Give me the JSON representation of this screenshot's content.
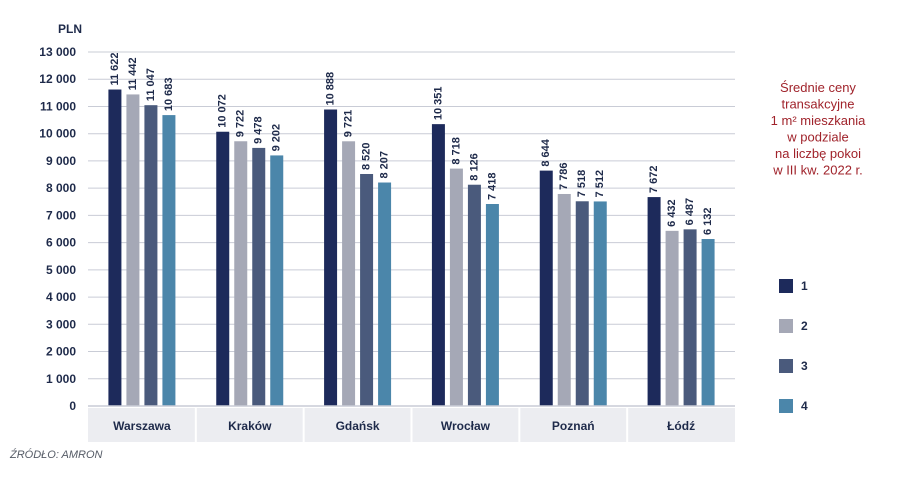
{
  "chart_data": {
    "type": "bar",
    "unit_label": "PLN",
    "title_lines": [
      "Średnie ceny",
      "transakcyjne",
      "1 m² mieszkania",
      "w podziale",
      "na liczbę pokoi",
      "w III kw. 2022 r."
    ],
    "categories": [
      "Warszawa",
      "Kraków",
      "Gdańsk",
      "Wrocław",
      "Poznań",
      "Łódź"
    ],
    "series": [
      {
        "name": "1",
        "color": "#1d2a5b",
        "values": [
          11622,
          10072,
          10888,
          10351,
          8644,
          7672
        ],
        "labels": [
          "11 622",
          "10 072",
          "10 888",
          "10 351",
          "8 644",
          "7 672"
        ]
      },
      {
        "name": "2",
        "color": "#a5a8b6",
        "values": [
          11442,
          9722,
          9721,
          8718,
          7786,
          6432
        ],
        "labels": [
          "11 442",
          "9 722",
          "9 721",
          "8 718",
          "7 786",
          "6 432"
        ]
      },
      {
        "name": "3",
        "color": "#4a5a7c",
        "values": [
          11047,
          9478,
          8520,
          8126,
          7518,
          6487
        ],
        "labels": [
          "11 047",
          "9 478",
          "8 520",
          "8 126",
          "7 518",
          "6 487"
        ]
      },
      {
        "name": "4",
        "color": "#4b86aa",
        "values": [
          10683,
          9202,
          8207,
          7418,
          7512,
          6132
        ],
        "labels": [
          "10 683",
          "9 202",
          "8 207",
          "7 418",
          "7 512",
          "6 132"
        ]
      }
    ],
    "ylim": [
      0,
      13000
    ],
    "yticks": [
      0,
      1000,
      2000,
      3000,
      4000,
      5000,
      6000,
      7000,
      8000,
      9000,
      10000,
      11000,
      12000,
      13000
    ],
    "ytick_labels": [
      "0",
      "1 000",
      "2 000",
      "3 000",
      "4 000",
      "5 000",
      "6 000",
      "7 000",
      "8 000",
      "9 000",
      "10 000",
      "11 000",
      "12 000",
      "13 000"
    ],
    "grid": true,
    "legend_position": "right",
    "source": "ŹRÓDŁO: AMRON"
  }
}
